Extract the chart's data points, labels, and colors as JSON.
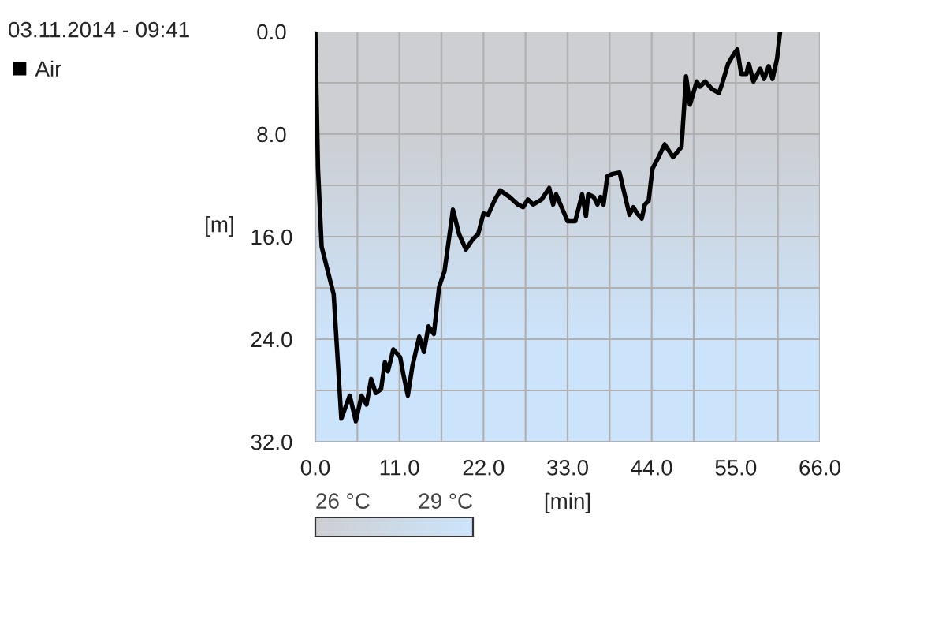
{
  "chart_data": {
    "type": "line",
    "title": "03.11.2014 - 09:41",
    "xlabel": "[min]",
    "ylabel": "[m]",
    "legend": "top left",
    "grid": true,
    "marker": "none",
    "line_style": "solid",
    "xlim": [
      0,
      66
    ],
    "ylim": [
      32,
      0
    ],
    "xticks": [
      {
        "value": 0,
        "label": "0.0"
      },
      {
        "value": 11,
        "label": "11.0"
      },
      {
        "value": 22,
        "label": "22.0"
      },
      {
        "value": 33,
        "label": "33.0"
      },
      {
        "value": 44,
        "label": "44.0"
      },
      {
        "value": 55,
        "label": "55.0"
      },
      {
        "value": 66,
        "label": "66.0"
      }
    ],
    "yticks": [
      {
        "value": 0,
        "label": "0.0"
      },
      {
        "value": 8,
        "label": "8.0"
      },
      {
        "value": 16,
        "label": "16.0"
      },
      {
        "value": 24,
        "label": "24.0"
      },
      {
        "value": 32,
        "label": "32.0"
      }
    ],
    "clim": [
      26,
      29
    ],
    "cticks": [
      {
        "value": 26,
        "label": "26 °C"
      },
      {
        "value": 29,
        "label": "29 °C"
      }
    ],
    "series": [
      {
        "name": "Air",
        "color": "#000000",
        "x": [
          0,
          0.35,
          0.83,
          2.4,
          3.4,
          4.5,
          5.3,
          6.05,
          6.7,
          7.3,
          7.9,
          8.6,
          9.1,
          9.5,
          10.2,
          11.1,
          11.5,
          12.1,
          12.7,
          13.6,
          14.2,
          14.8,
          15.5,
          16.2,
          16.9,
          18.0,
          18.8,
          19.7,
          20.6,
          21.3,
          22.0,
          22.6,
          23.5,
          24.2,
          25.4,
          26.5,
          27.2,
          27.8,
          28.5,
          29.6,
          30.6,
          31.1,
          31.5,
          33.0,
          34.0,
          34.9,
          35.4,
          35.7,
          36.4,
          36.9,
          37.3,
          37.7,
          38.2,
          38.9,
          39.8,
          40.3,
          41.1,
          41.6,
          42.1,
          42.7,
          43.1,
          43.6,
          44.1,
          44.9,
          45.7,
          46.8,
          47.9,
          48.5,
          49.0,
          49.9,
          50.3,
          51.0,
          51.9,
          52.8,
          53.3,
          54.0,
          54.7,
          55.2,
          55.7,
          56.4,
          56.7,
          57.3,
          58.2,
          58.7,
          59.3,
          59.8,
          60.4,
          60.8
        ],
        "values": [
          0,
          10.7,
          16.8,
          20.5,
          30.2,
          28.4,
          30.4,
          28.4,
          29.1,
          27.1,
          28.2,
          27.9,
          25.8,
          26.5,
          24.8,
          25.4,
          26.7,
          28.4,
          26.1,
          23.8,
          25.0,
          23.0,
          23.6,
          19.9,
          18.7,
          13.9,
          15.8,
          17.0,
          16.2,
          15.8,
          14.2,
          14.3,
          13.1,
          12.4,
          12.9,
          13.5,
          13.7,
          13.1,
          13.5,
          13.1,
          12.2,
          13.5,
          12.7,
          14.8,
          14.8,
          12.7,
          14.4,
          12.7,
          12.9,
          13.5,
          12.9,
          13.5,
          11.3,
          11.1,
          11.0,
          12.3,
          14.3,
          13.7,
          14.2,
          14.6,
          13.5,
          13.2,
          10.7,
          9.8,
          8.8,
          9.8,
          9.0,
          3.5,
          5.7,
          3.9,
          4.3,
          3.9,
          4.5,
          4.8,
          3.9,
          2.5,
          1.8,
          1.4,
          3.3,
          3.3,
          2.5,
          3.9,
          2.9,
          3.7,
          2.7,
          3.7,
          2.1,
          0.0
        ]
      }
    ]
  }
}
